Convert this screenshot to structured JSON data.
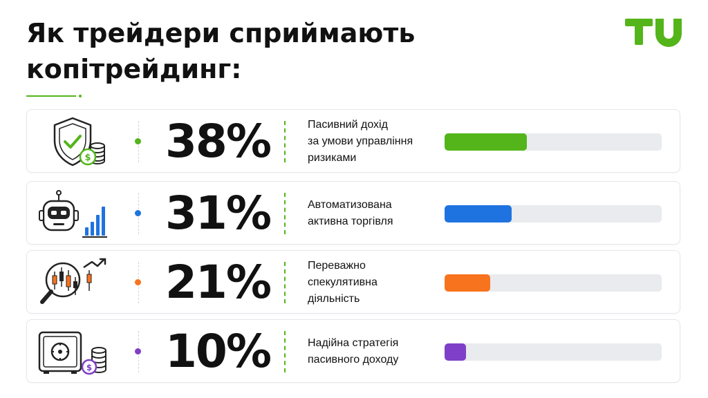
{
  "title": {
    "line1": "Як трейдери сприймають",
    "line2": "копітрейдинг:"
  },
  "logo": {
    "text": "TU",
    "color": "#53b51a"
  },
  "rows": [
    {
      "percent": "38%",
      "value": 38,
      "description": [
        "Пасивний дохід",
        "за умови управління",
        "ризиками"
      ],
      "color": "#53b51a",
      "icon": "shield-check-coins-icon"
    },
    {
      "percent": "31%",
      "value": 31,
      "description": [
        "Автоматизована",
        "активна торгівля"
      ],
      "color": "#1f73e0",
      "icon": "robot-bar-chart-icon"
    },
    {
      "percent": "21%",
      "value": 21,
      "description": [
        "Переважно",
        "спекулятивна",
        "діяльність"
      ],
      "color": "#f8731d",
      "icon": "candlestick-magnifier-icon"
    },
    {
      "percent": "10%",
      "value": 10,
      "description": [
        "Надійна стратегія",
        "пасивного доходу"
      ],
      "color": "#7f3fc6",
      "icon": "safe-coins-icon"
    }
  ]
}
